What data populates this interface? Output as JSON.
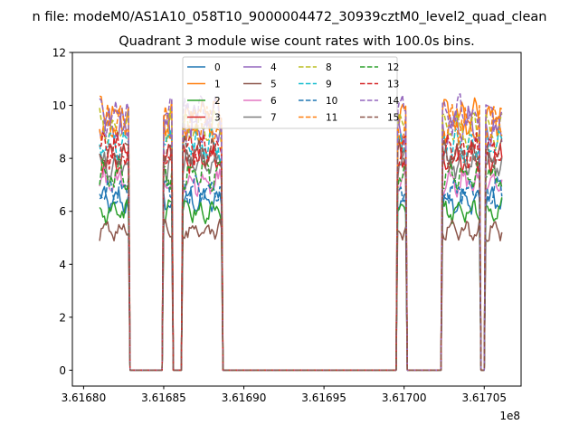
{
  "chart_data": {
    "type": "line",
    "suptitle": "n file: modeM0/AS1A10_058T10_9000004472_30939cztM0_level2_quad_clean",
    "title": "Quadrant 3 module wise count rates with 100.0s bins.",
    "xlabel": "",
    "ylabel": "",
    "x_offset_label": "1e8",
    "xlim": [
      3.616793,
      3.617073
    ],
    "ylim": [
      -0.6,
      12
    ],
    "xticks": [
      {
        "value": 3.6168,
        "label": "3.61680"
      },
      {
        "value": 3.61685,
        "label": "3.61685"
      },
      {
        "value": 3.6169,
        "label": "3.61690"
      },
      {
        "value": 3.61695,
        "label": "3.61695"
      },
      {
        "value": 3.617,
        "label": "3.61700"
      },
      {
        "value": 3.61705,
        "label": "3.61705"
      }
    ],
    "yticks": [
      {
        "value": 0,
        "label": "0"
      },
      {
        "value": 2,
        "label": "2"
      },
      {
        "value": 4,
        "label": "4"
      },
      {
        "value": 6,
        "label": "6"
      },
      {
        "value": 8,
        "label": "8"
      },
      {
        "value": 10,
        "label": "10"
      },
      {
        "value": 12,
        "label": "12"
      }
    ],
    "grid": false,
    "legend_position": "upper-center",
    "legend_columns": 4,
    "time_range": [
      3.61681,
      3.617061
    ],
    "on_intervals": [
      [
        3.61681,
        3.616828
      ],
      [
        3.61685,
        3.616855
      ],
      [
        3.616862,
        3.616886
      ],
      [
        3.616996,
        3.617002
      ],
      [
        3.617024,
        3.617047
      ],
      [
        3.617051,
        3.617061
      ]
    ],
    "series": [
      {
        "name": "0",
        "color": "#1f77b4",
        "dash": "solid",
        "level": 6.4
      },
      {
        "name": "1",
        "color": "#ff7f0e",
        "dash": "solid",
        "level": 9.6
      },
      {
        "name": "2",
        "color": "#2ca02c",
        "dash": "solid",
        "level": 6.0
      },
      {
        "name": "3",
        "color": "#d62728",
        "dash": "solid",
        "level": 8.0
      },
      {
        "name": "4",
        "color": "#9467bd",
        "dash": "solid",
        "level": 9.2
      },
      {
        "name": "5",
        "color": "#8c564b",
        "dash": "solid",
        "level": 5.3
      },
      {
        "name": "6",
        "color": "#e377c2",
        "dash": "solid",
        "level": 7.1
      },
      {
        "name": "7",
        "color": "#7f7f7f",
        "dash": "solid",
        "level": 7.8
      },
      {
        "name": "8",
        "color": "#bcbd22",
        "dash": "dashed",
        "level": 9.1
      },
      {
        "name": "9",
        "color": "#17becf",
        "dash": "dashed",
        "level": 8.5
      },
      {
        "name": "10",
        "color": "#1f77b4",
        "dash": "dashed",
        "level": 6.8
      },
      {
        "name": "11",
        "color": "#ff7f0e",
        "dash": "dashed",
        "level": 9.3
      },
      {
        "name": "12",
        "color": "#2ca02c",
        "dash": "dashed",
        "level": 7.4
      },
      {
        "name": "13",
        "color": "#d62728",
        "dash": "dashed",
        "level": 8.3
      },
      {
        "name": "14",
        "color": "#9467bd",
        "dash": "dashed",
        "level": 9.6
      },
      {
        "name": "15",
        "color": "#8c564b",
        "dash": "dashed",
        "level": 8.2
      }
    ]
  }
}
